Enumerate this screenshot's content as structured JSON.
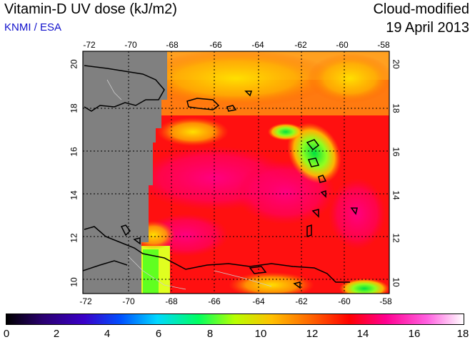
{
  "header": {
    "title": "Vitamin-D UV dose (kJ/m2)",
    "subtitle": "KNMI / ESA",
    "product": "Cloud-modified",
    "date": "19 April 2013"
  },
  "map": {
    "lon_ticks": [
      "-72",
      "-70",
      "-68",
      "-66",
      "-64",
      "-62",
      "-60",
      "-58"
    ],
    "lat_ticks": [
      "10",
      "12",
      "14",
      "16",
      "18",
      "20"
    ],
    "no_data_color": "#808080",
    "grid": "dotted"
  },
  "colorbar": {
    "labels": [
      "0",
      "2",
      "4",
      "6",
      "8",
      "10",
      "12",
      "14",
      "16",
      "18"
    ],
    "colors": [
      "#000000",
      "#3a00a0",
      "#0000ff",
      "#00c8ff",
      "#00ff40",
      "#c8ff00",
      "#ffa500",
      "#ff0000",
      "#ff00a0",
      "#ffffff"
    ]
  }
}
